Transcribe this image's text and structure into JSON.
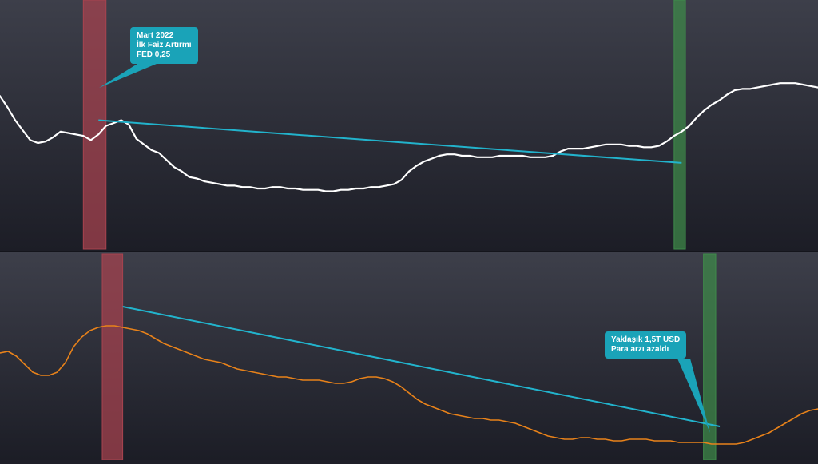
{
  "colors": {
    "background_top": "#3d3f4a",
    "background_bottom": "#1c1d26",
    "price_line": "#ffffff",
    "money_supply_line": "#e8821a",
    "trendline": "#22b3cc",
    "hike_band": "#a8434f",
    "end_band": "#3e8a4a",
    "callout_bg": "#1aa3b8",
    "callout_text": "#ffffff"
  },
  "annotations": {
    "hike": {
      "line1": "Mart 2022",
      "line2": "İlk Faiz Artırmı",
      "line3": "FED 0,25"
    },
    "supply": {
      "line1": "Yaklaşık 1,5T USD",
      "line2": "Para arzı azaldı"
    }
  },
  "chart_data": [
    {
      "type": "line",
      "name": "top-panel",
      "axes_visible": false,
      "grid": false,
      "x_index_range": [
        0,
        108
      ],
      "ylim": [
        0,
        100
      ],
      "series": [
        {
          "values": [
            83,
            75,
            66,
            59,
            52,
            50,
            51,
            54,
            58,
            57,
            56,
            55,
            52,
            56,
            62,
            64,
            66,
            63,
            53,
            49,
            45,
            43,
            38,
            33,
            30,
            26,
            25,
            23,
            22,
            21,
            20,
            20,
            19,
            19,
            18,
            18,
            19,
            19,
            18,
            18,
            17,
            17,
            17,
            16,
            16,
            17,
            17,
            18,
            18,
            19,
            19,
            20,
            21,
            24,
            30,
            34,
            37,
            39,
            41,
            42,
            42,
            41,
            41,
            40,
            40,
            40,
            41,
            41,
            41,
            41,
            40,
            40,
            40,
            41,
            44,
            46,
            46,
            46,
            47,
            48,
            49,
            49,
            49,
            48,
            48,
            47,
            47,
            48,
            51,
            55,
            58,
            62,
            68,
            73,
            77,
            80,
            84,
            87,
            88,
            88,
            89,
            90,
            91,
            92,
            92,
            92,
            91,
            90,
            89
          ]
        }
      ],
      "trendline": {
        "from": [
          13,
          66
        ],
        "to": [
          90,
          36
        ]
      },
      "bands": [
        {
          "kind": "hike",
          "x_from": 11,
          "x_to": 14
        },
        {
          "kind": "end",
          "x_from": 89,
          "x_to": 90.5
        }
      ]
    },
    {
      "type": "line",
      "name": "bottom-panel",
      "axes_visible": false,
      "grid": false,
      "x_index_range": [
        0,
        100
      ],
      "ylim": [
        0,
        100
      ],
      "series": [
        {
          "values": [
            62,
            63,
            60,
            55,
            50,
            48,
            48,
            50,
            56,
            66,
            72,
            76,
            78,
            79,
            79,
            78,
            77,
            76,
            74,
            71,
            68,
            66,
            64,
            62,
            60,
            58,
            57,
            56,
            54,
            52,
            51,
            50,
            49,
            48,
            47,
            47,
            46,
            45,
            45,
            45,
            44,
            43,
            43,
            44,
            46,
            47,
            47,
            46,
            44,
            41,
            37,
            33,
            30,
            28,
            26,
            24,
            23,
            22,
            21,
            21,
            20,
            20,
            19,
            18,
            16,
            14,
            12,
            10,
            9,
            8,
            8,
            9,
            9,
            8,
            8,
            7,
            7,
            8,
            8,
            8,
            7,
            7,
            7,
            6,
            6,
            6,
            6,
            5,
            5,
            5,
            5,
            6,
            8,
            10,
            12,
            15,
            18,
            21,
            24,
            26,
            27
          ]
        }
      ],
      "trendline": {
        "from": [
          15,
          91
        ],
        "to": [
          88,
          16
        ]
      },
      "bands": [
        {
          "kind": "hike",
          "x_from": 12.5,
          "x_to": 15
        },
        {
          "kind": "end",
          "x_from": 86,
          "x_to": 87.5
        }
      ]
    }
  ]
}
